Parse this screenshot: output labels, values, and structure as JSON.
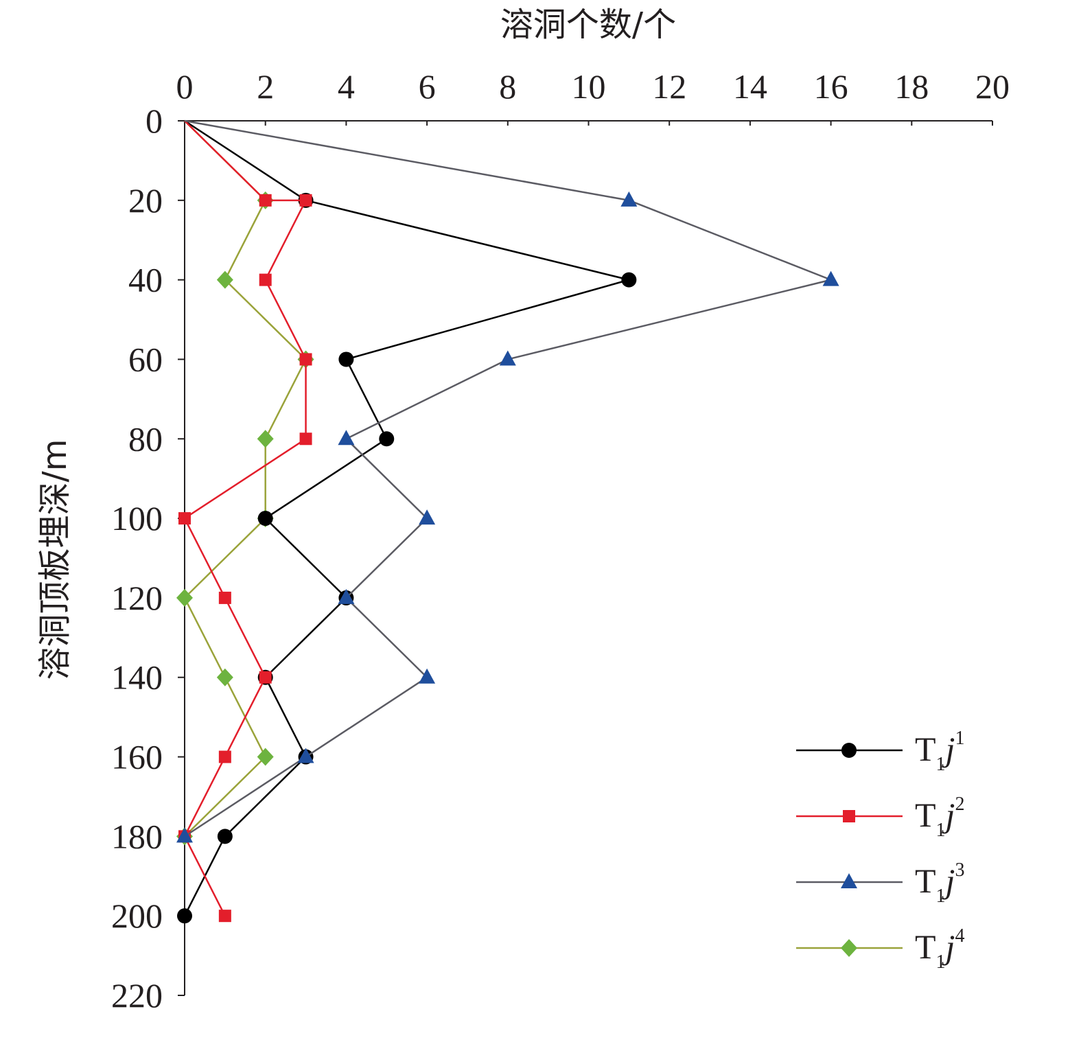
{
  "chart_data": {
    "type": "line",
    "xlabel": "溶洞个数/个",
    "ylabel": "溶洞顶板埋深/m",
    "x_axis_position": "top",
    "y_axis_inverted": true,
    "xlim": [
      0,
      20
    ],
    "ylim": [
      0,
      220
    ],
    "x_ticks": [
      "0",
      "2",
      "4",
      "6",
      "8",
      "10",
      "12",
      "14",
      "16",
      "18",
      "20"
    ],
    "y_ticks": [
      "0",
      "20",
      "40",
      "60",
      "80",
      "100",
      "120",
      "140",
      "160",
      "180",
      "200",
      "220"
    ],
    "grid": false,
    "legend_position": "bottom-right",
    "series": [
      {
        "name": "T1j1",
        "label_main": "T",
        "label_sub": "1",
        "label_italic": "j",
        "label_sup": "1",
        "color": "#000000",
        "marker": "circle",
        "points": [
          [
            0,
            0
          ],
          [
            3,
            20
          ],
          [
            11,
            40
          ],
          [
            4,
            60
          ],
          [
            5,
            80
          ],
          [
            2,
            100
          ],
          [
            4,
            120
          ],
          [
            2,
            140
          ],
          [
            3,
            160
          ],
          [
            1,
            180
          ],
          [
            0,
            200
          ]
        ]
      },
      {
        "name": "T1j2",
        "label_main": "T",
        "label_sub": "1",
        "label_italic": "j",
        "label_sup": "2",
        "color": "#e31e2b",
        "marker": "square",
        "points": [
          [
            0,
            0
          ],
          [
            2,
            20
          ],
          [
            3,
            20
          ],
          [
            2,
            40
          ],
          [
            3,
            60
          ],
          [
            3,
            80
          ],
          [
            0,
            100
          ],
          [
            1,
            120
          ],
          [
            2,
            140
          ],
          [
            1,
            160
          ],
          [
            0,
            180
          ],
          [
            1,
            200
          ]
        ]
      },
      {
        "name": "T1j3",
        "label_main": "T",
        "label_sub": "1",
        "label_italic": "j",
        "label_sup": "3",
        "color": "#5b5b63",
        "marker_color": "#1f4e9c",
        "marker": "triangle",
        "points": [
          [
            0,
            0
          ],
          [
            11,
            20
          ],
          [
            16,
            40
          ],
          [
            8,
            60
          ],
          [
            4,
            80
          ],
          [
            6,
            100
          ],
          [
            4,
            120
          ],
          [
            6,
            140
          ],
          [
            3,
            160
          ],
          [
            0,
            180
          ]
        ]
      },
      {
        "name": "T1j4",
        "label_main": "T",
        "label_sub": "1",
        "label_italic": "j",
        "label_sup": "4",
        "color": "#9aa33a",
        "marker_color": "#6db33f",
        "marker": "diamond",
        "points": [
          [
            0,
            0
          ],
          [
            2,
            20
          ],
          [
            1,
            40
          ],
          [
            3,
            60
          ],
          [
            2,
            80
          ],
          [
            2,
            100
          ],
          [
            0,
            120
          ],
          [
            1,
            140
          ],
          [
            2,
            160
          ],
          [
            0,
            180
          ]
        ]
      }
    ]
  }
}
